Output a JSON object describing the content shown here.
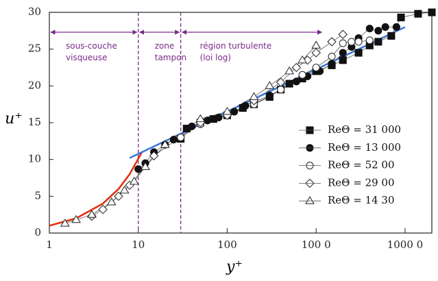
{
  "chart_data": {
    "type": "scatter",
    "xlabel": "y⁺",
    "ylabel": "u⁺",
    "xscale": "log",
    "xlim": [
      1,
      20000
    ],
    "ylim": [
      0,
      30
    ],
    "xticks": [
      1,
      10,
      100,
      {
        "value": 1000,
        "label": "100 0"
      },
      {
        "value": 10000,
        "label": "1000 0"
      }
    ],
    "yticks": [
      0,
      5,
      10,
      15,
      20,
      25,
      30
    ],
    "series": [
      {
        "name": "ReΘ = 31 000",
        "marker": "square",
        "filled": true,
        "color": "#111111",
        "x": [
          30,
          35,
          50,
          70,
          100,
          150,
          200,
          300,
          400,
          500,
          700,
          1000,
          1500,
          2000,
          3000,
          4000,
          5000,
          7000,
          9000,
          14000,
          20000
        ],
        "values": [
          12.8,
          14.2,
          15,
          15.5,
          16,
          17,
          17.5,
          18.5,
          19.5,
          20.3,
          21,
          22,
          22.8,
          23.5,
          24.5,
          25.5,
          26,
          26.8,
          29.3,
          29.8,
          30
        ]
      },
      {
        "name": "ReΘ = 13 000",
        "marker": "circle",
        "filled": true,
        "color": "#111111",
        "x": [
          10,
          12,
          15,
          20,
          25,
          40,
          60,
          80,
          120,
          160,
          200,
          300,
          400,
          600,
          800,
          1100,
          1500,
          2000,
          2500,
          3000,
          4000,
          5000,
          6000,
          8000
        ],
        "values": [
          8.7,
          9.5,
          11,
          12,
          12.7,
          14.5,
          15.3,
          15.7,
          16.5,
          17.3,
          17.8,
          18.7,
          19.5,
          20.6,
          21.3,
          22,
          23,
          24.5,
          25.3,
          26.5,
          27.8,
          27.5,
          28,
          28
        ]
      },
      {
        "name": "ReΘ = 52 00",
        "marker": "circle",
        "filled": false,
        "color": "#333333",
        "x": [
          30,
          50,
          100,
          200,
          400,
          700,
          1000,
          1500,
          2000,
          2500,
          3000,
          4000
        ],
        "values": [
          13,
          14.8,
          16,
          17.5,
          19.5,
          21.5,
          22.5,
          24,
          25.8,
          26,
          26,
          26.2
        ]
      },
      {
        "name": "ReΘ = 29 00",
        "marker": "diamond",
        "filled": false,
        "color": "#333333",
        "x": [
          3,
          4,
          6,
          8,
          15,
          50,
          100,
          200,
          400,
          600,
          800,
          1000,
          1500,
          2000
        ],
        "values": [
          2.3,
          3.2,
          5,
          6.5,
          10.5,
          15,
          16,
          18,
          20.5,
          22.5,
          23.5,
          24.5,
          26,
          27
        ]
      },
      {
        "name": "ReΘ = 14 30",
        "marker": "triangle",
        "filled": false,
        "color": "#333333",
        "x": [
          1.5,
          2,
          3,
          5,
          7,
          9,
          12,
          20,
          50,
          100,
          200,
          300,
          500,
          700,
          1000
        ],
        "values": [
          1.3,
          1.8,
          2.5,
          4.2,
          5.8,
          7,
          9,
          12,
          15.5,
          16.5,
          18.5,
          20,
          22,
          23.5,
          25.5
        ]
      }
    ],
    "reference_lines": [
      {
        "color": "#e03010",
        "x": [
          1,
          2,
          4,
          6,
          8,
          11
        ],
        "values": [
          1,
          2,
          4,
          6,
          8,
          11
        ]
      },
      {
        "color": "#3a78d8",
        "x": [
          8,
          10000
        ],
        "values": [
          10.2,
          28
        ]
      }
    ],
    "boundaries": [
      10,
      30
    ],
    "regions": [
      {
        "label": [
          "sous-couche",
          "visqueuse"
        ],
        "xrange": [
          1,
          10
        ]
      },
      {
        "label": [
          "zone",
          "tampon"
        ],
        "xrange": [
          10,
          30
        ]
      },
      {
        "label": [
          "région turbulente",
          "(loi log)"
        ],
        "xrange": [
          30,
          1200
        ]
      }
    ],
    "region_arrow_y": 27.3,
    "annotation_color": "#7a2a8a"
  }
}
